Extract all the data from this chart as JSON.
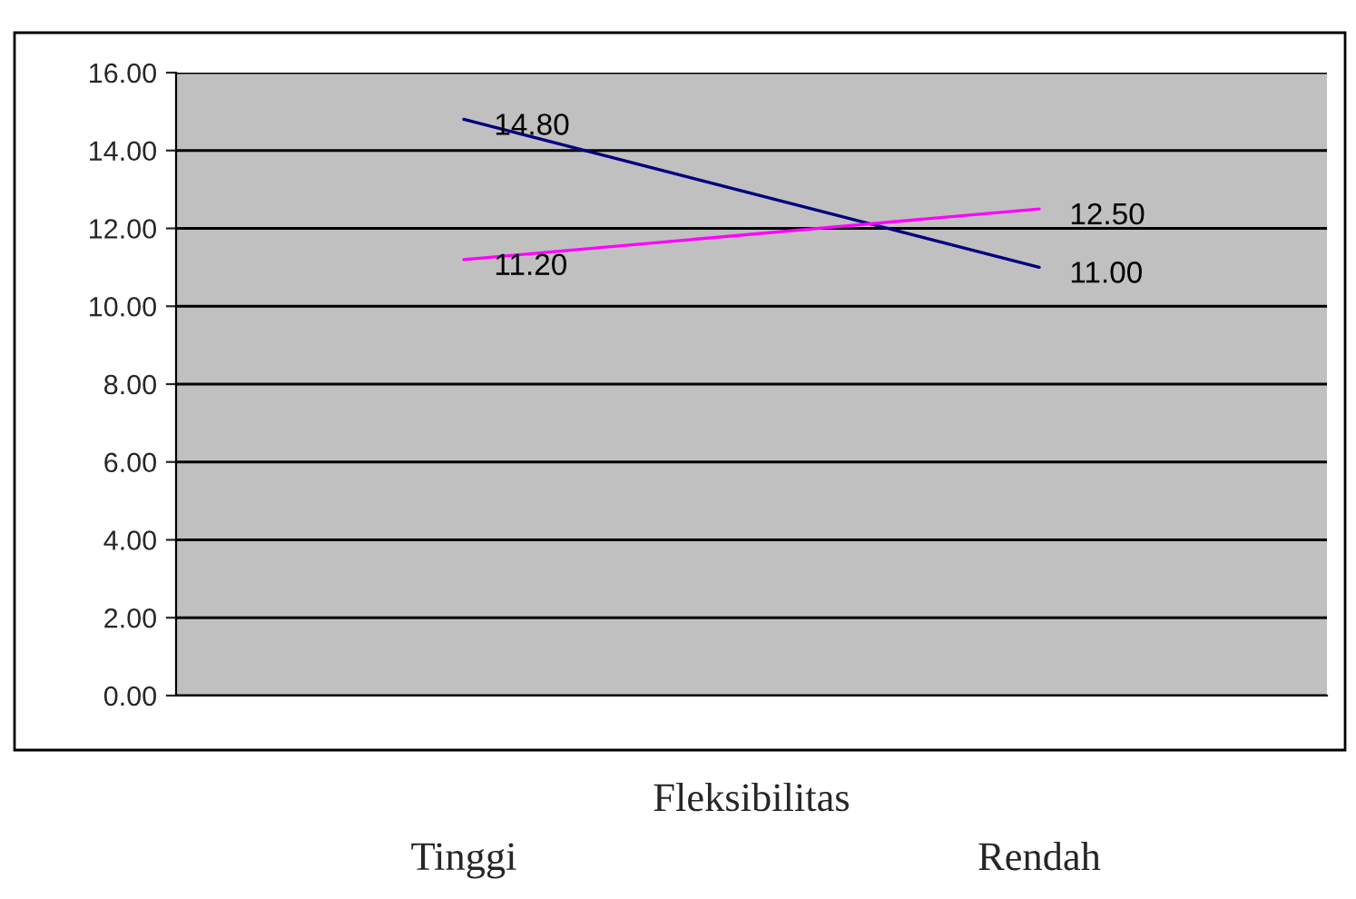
{
  "chart_data": {
    "type": "line",
    "xlabel": "Fleksibilitas",
    "categories": [
      "Tinggi",
      "Rendah"
    ],
    "series": [
      {
        "color": "#000080",
        "values": [
          14.8,
          11.0
        ]
      },
      {
        "color": "#ff00ff",
        "values": [
          11.2,
          12.5
        ]
      }
    ],
    "ylim": [
      0,
      16
    ],
    "yticks": [
      {
        "value": 0,
        "label": "0.00"
      },
      {
        "value": 2,
        "label": "2.00"
      },
      {
        "value": 4,
        "label": "4.00"
      },
      {
        "value": 6,
        "label": "6.00"
      },
      {
        "value": 8,
        "label": "8.00"
      },
      {
        "value": 10,
        "label": "10.00"
      },
      {
        "value": 12,
        "label": "12.00"
      },
      {
        "value": 14,
        "label": "14.00"
      },
      {
        "value": 16,
        "label": "16.00"
      }
    ],
    "grid": "y",
    "legend": false,
    "marker": "none",
    "line_style": "solid",
    "value_labels": [
      [
        "14.80",
        "11.00"
      ],
      [
        "11.20",
        "12.50"
      ]
    ]
  }
}
